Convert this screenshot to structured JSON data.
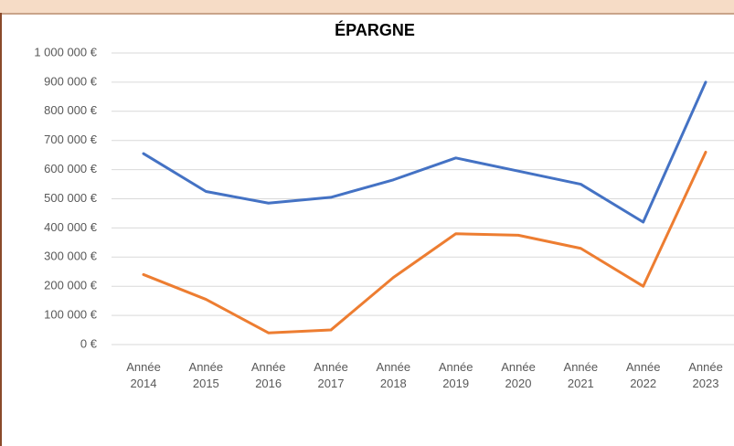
{
  "chart_data": {
    "type": "line",
    "title": "ÉPARGNE",
    "categories": [
      "Année 2014",
      "Année 2015",
      "Année 2016",
      "Année 2017",
      "Année 2018",
      "Année 2019",
      "Année 2020",
      "Année 2021",
      "Année 2022",
      "Année 2023"
    ],
    "series": [
      {
        "color": "#4472c4",
        "values": [
          655000,
          525000,
          485000,
          505000,
          565000,
          640000,
          595000,
          550000,
          420000,
          900000
        ]
      },
      {
        "color": "#ed7d31",
        "values": [
          240000,
          155000,
          40000,
          50000,
          230000,
          380000,
          375000,
          330000,
          200000,
          660000
        ]
      }
    ],
    "ylim": [
      0,
      1000000
    ],
    "yticks": [
      {
        "value": 0,
        "label": "0 €"
      },
      {
        "value": 100000,
        "label": "100 000 €"
      },
      {
        "value": 200000,
        "label": "200 000 €"
      },
      {
        "value": 300000,
        "label": "300 000 €"
      },
      {
        "value": 400000,
        "label": "400 000 €"
      },
      {
        "value": 500000,
        "label": "500 000 €"
      },
      {
        "value": 600000,
        "label": "600 000 €"
      },
      {
        "value": 700000,
        "label": "700 000 €"
      },
      {
        "value": 800000,
        "label": "800 000 €"
      },
      {
        "value": 900000,
        "label": "900 000 €"
      },
      {
        "value": 1000000,
        "label": "1 000 000 €"
      }
    ],
    "grid": true
  }
}
